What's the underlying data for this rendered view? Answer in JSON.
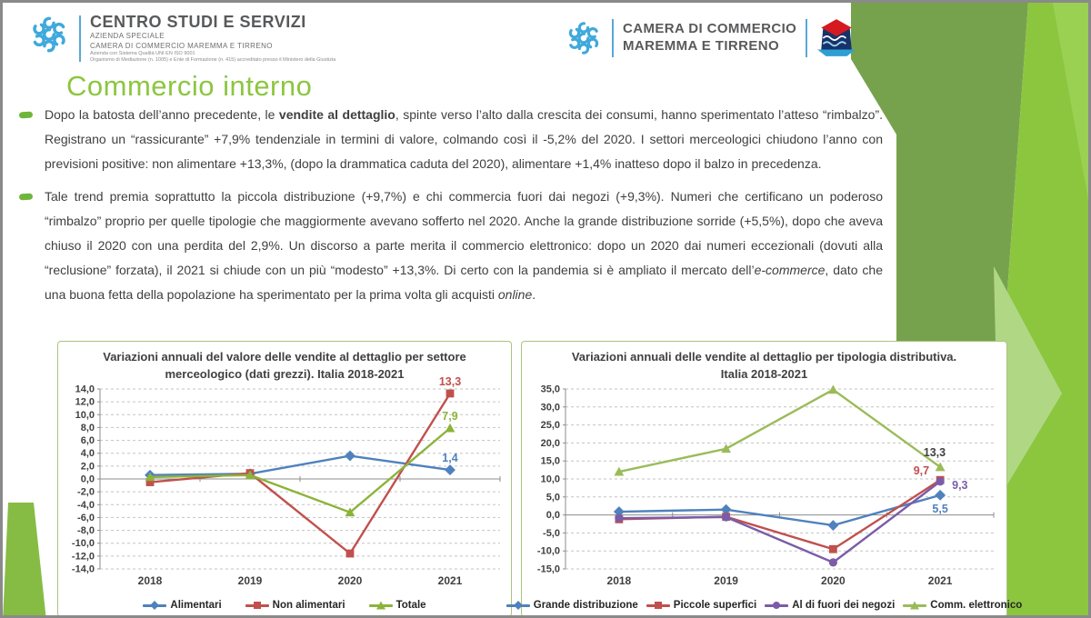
{
  "slide": {
    "title": "Commercio interno"
  },
  "header": {
    "left": {
      "name": "CENTRO STUDI E SERVIZI",
      "subtitle1": "AZIENDA SPECIALE",
      "subtitle2": "CAMERA DI COMMERCIO MAREMMA E TIRRENO",
      "subtitle3": "Azienda con Sistema Qualità UNI EN ISO 9001",
      "subtitle4": "Organismo di Mediazione (n. 1005) e Ente di Formazione (n. 415) accreditato presso il Ministero della Giustizia"
    },
    "right": {
      "name_line1": "CAMERA DI COMMERCIO",
      "name_line2": "MAREMMA E TIRRENO"
    }
  },
  "bullets": [
    {
      "segments": [
        {
          "text": "Dopo la batosta dell’anno precedente, le "
        },
        {
          "text": "vendite al dettaglio",
          "bold": true
        },
        {
          "text": ", spinte verso l’alto dalla crescita dei consumi, hanno sperimentato l’atteso “rimbalzo”. Registrano un “rassicurante” +7,9% tendenziale in termini di valore, colmando così il -5,2% del 2020. I settori merceologici chiudono l’anno con previsioni  positive: non alimentare +13,3%, (dopo la drammatica caduta del 2020), alimentare +1,4% inatteso dopo il balzo in precedenza."
        }
      ]
    },
    {
      "segments": [
        {
          "text": "Tale trend premia soprattutto la piccola distribuzione (+9,7%) e chi commercia fuori dai negozi (+9,3%). Numeri che certificano un poderoso “rimbalzo” proprio per quelle tipologie che maggiormente avevano sofferto nel 2020. Anche la grande distribuzione sorride (+5,5%), dopo che aveva chiuso il 2020 con una perdita del 2,9%. Un discorso a parte merita il commercio elettronico: dopo un 2020 dai numeri eccezionali (dovuti alla “reclusione” forzata), il 2021 si chiude con un più “modesto” +13,3%. Di certo con la pandemia si è ampliato il mercato dell’"
        },
        {
          "text": "e-commerce",
          "italic": true
        },
        {
          "text": ", dato che una buona fetta della popolazione ha sperimentato per la prima volta gli acquisti "
        },
        {
          "text": "online",
          "italic": true
        },
        {
          "text": "."
        }
      ]
    }
  ],
  "colors": {
    "title_green": "#8cc63f",
    "body_text": "#3f3f3f",
    "logo_blue": "#3fa9dc",
    "series_blue": "#4F81BD",
    "series_red": "#C0504D",
    "series_purple": "#7A5CA8",
    "series_green_left": "#8CB33A",
    "series_green_right": "#9BBB59"
  },
  "chart_data": [
    {
      "type": "line",
      "title": "Variazioni annuali del valore delle vendite al dettaglio per settore merceologico (dati grezzi). Italia 2018-2021",
      "title_lines": [
        "Variazioni annuali del valore delle vendite al dettaglio per settore",
        "merceologico (dati grezzi). Italia 2018-2021"
      ],
      "categories": [
        "2018",
        "2019",
        "2020",
        "2021"
      ],
      "xlabel": "",
      "ylabel": "",
      "ylim": [
        -14,
        14
      ],
      "ytick_step": 2,
      "ytick_labels": [
        "14,0",
        "12,0",
        "10,0",
        "8,0",
        "6,0",
        "4,0",
        "2,0",
        "0,0",
        "-2,0",
        "-4,0",
        "-6,0",
        "-8,0",
        "-10,0",
        "-12,0",
        "-14,0"
      ],
      "grid": "dashed",
      "legend_position": "bottom",
      "series": [
        {
          "name": "Alimentari",
          "color": "#4F81BD",
          "marker": "diamond",
          "values": [
            0.6,
            0.8,
            3.6,
            1.4
          ],
          "end_label": "1,4",
          "end_label_pos": "above"
        },
        {
          "name": "Non alimentari",
          "color": "#C0504D",
          "marker": "square",
          "values": [
            -0.5,
            0.9,
            -11.6,
            13.3
          ],
          "end_label": "13,3",
          "end_label_pos": "above"
        },
        {
          "name": "Totale",
          "color": "#8CB33A",
          "marker": "triangle",
          "values": [
            0.3,
            0.6,
            -5.2,
            7.9
          ],
          "end_label": "7,9",
          "end_label_pos": "above"
        }
      ]
    },
    {
      "type": "line",
      "title": "Variazioni annuali delle vendite al dettaglio per tipologia distributiva. Italia 2018-2021",
      "title_lines": [
        "Variazioni annuali delle vendite al dettaglio per tipologia distributiva.",
        "Italia 2018-2021"
      ],
      "categories": [
        "2018",
        "2019",
        "2020",
        "2021"
      ],
      "xlabel": "",
      "ylabel": "",
      "ylim": [
        -15,
        35
      ],
      "ytick_step": 5,
      "ytick_labels": [
        "35,0",
        "30,0",
        "25,0",
        "20,0",
        "15,0",
        "10,0",
        "5,0",
        "0,0",
        "-5,0",
        "-10,0",
        "-15,0"
      ],
      "grid": "dashed",
      "legend_position": "bottom",
      "series": [
        {
          "name": "Grande distribuzione",
          "color": "#4F81BD",
          "marker": "diamond",
          "values": [
            0.9,
            1.5,
            -2.9,
            5.5
          ],
          "end_label": "5,5",
          "end_label_pos": "below"
        },
        {
          "name": "Piccole superfici",
          "color": "#C0504D",
          "marker": "square",
          "values": [
            -1.2,
            -0.5,
            -9.5,
            9.7
          ],
          "end_label": "9,7",
          "end_label_pos": "left"
        },
        {
          "name": "Al di fuori dei negozi",
          "color": "#7A5CA8",
          "marker": "circle",
          "values": [
            -0.9,
            -0.6,
            -13.2,
            9.3
          ],
          "end_label": "9,3",
          "end_label_pos": "right"
        },
        {
          "name": "Comm. elettronico",
          "color": "#9BBB59",
          "marker": "triangle",
          "values": [
            12.0,
            18.4,
            34.8,
            13.3
          ],
          "end_label": "13,3",
          "end_label_pos": "above-left",
          "end_label_color": "#404040"
        }
      ]
    }
  ]
}
